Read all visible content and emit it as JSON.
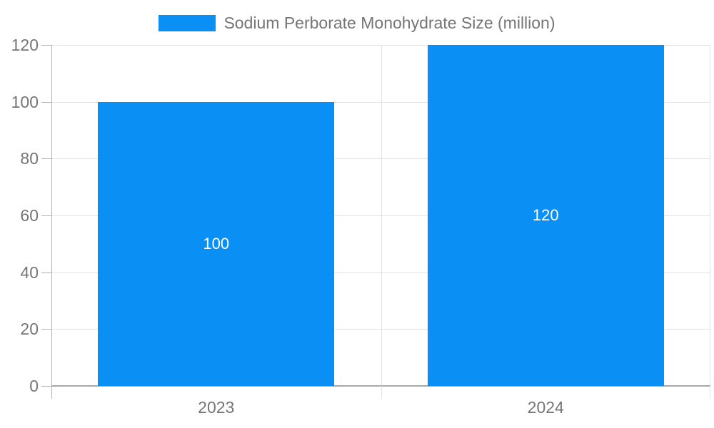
{
  "chart_data": {
    "type": "bar",
    "title": "",
    "categories": [
      "2023",
      "2024"
    ],
    "series": [
      {
        "name": "Sodium Perborate Monohydrate Size (million)",
        "values": [
          100,
          120
        ]
      }
    ],
    "value_labels": [
      "100",
      "120"
    ],
    "xlabel": "",
    "ylabel": "",
    "ylim": [
      0,
      120
    ],
    "yticks": [
      0,
      20,
      40,
      60,
      80,
      100,
      120
    ],
    "grid": true,
    "legend_position": "top-center",
    "colors": {
      "bar": "#0a8ff5",
      "grid_line": "#e2e2e2",
      "axis_line": "#a9a9a9",
      "tick_mark": "#b3b3b3",
      "axis_label": "#757575",
      "legend_text": "#757575",
      "value_label": "#ffffff",
      "background": "#ffffff"
    }
  }
}
